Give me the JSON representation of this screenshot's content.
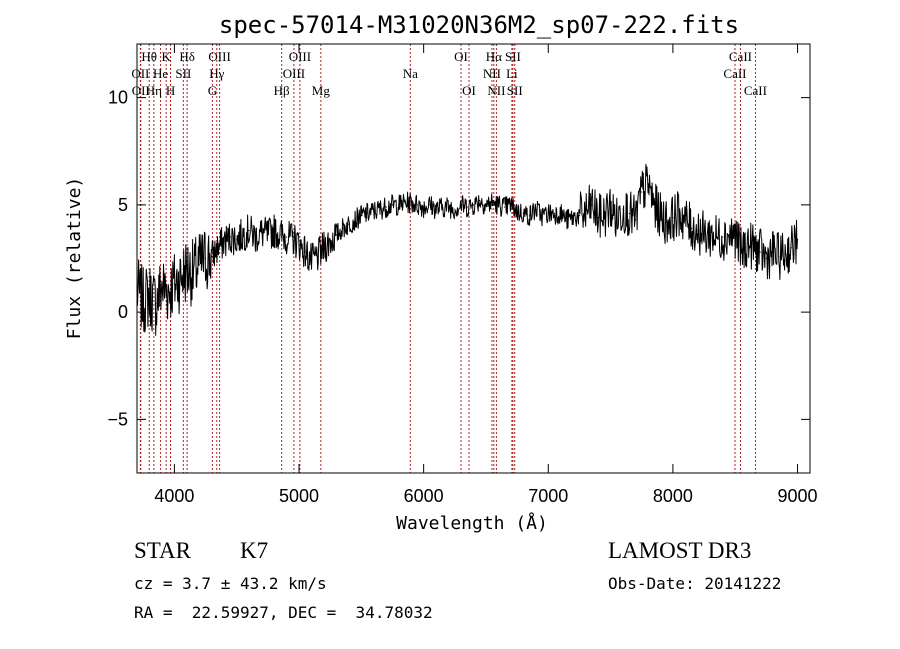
{
  "colors": {
    "line_marker": "#b22222",
    "spectrum": "#000000",
    "axes": "#000000"
  },
  "info": {
    "object_class": "STAR",
    "subclass": "K7",
    "survey": "LAMOST DR3",
    "cz": "cz = 3.7 ± 43.2 km/s",
    "obs_date": "Obs-Date: 20141222",
    "coords": "RA =  22.59927, DEC =  34.78032"
  },
  "chart_data": {
    "type": "line",
    "title": "spec-57014-M31020N36M2_sp07-222.fits",
    "xlabel": "Wavelength (Å)",
    "ylabel": "Flux (relative)",
    "xlim": [
      3700,
      9100
    ],
    "ylim": [
      -7.5,
      12.5
    ],
    "xticks": [
      4000,
      5000,
      6000,
      7000,
      8000,
      9000
    ],
    "yticks": [
      -5,
      0,
      5,
      10
    ],
    "grid": false,
    "series": [
      {
        "x": [
          3700,
          3750,
          3800,
          3850,
          3900,
          3950,
          4000,
          4050,
          4100,
          4150,
          4200,
          4250,
          4300,
          4350,
          4400,
          4450,
          4500,
          4550,
          4600,
          4650,
          4700,
          4750,
          4800,
          4850,
          4900,
          4950,
          5000,
          5050,
          5100,
          5150,
          5200,
          5250,
          5300,
          5350,
          5400,
          5450,
          5500,
          5550,
          5600,
          5650,
          5700,
          5750,
          5800,
          5850,
          5900,
          5950,
          6000,
          6050,
          6100,
          6150,
          6200,
          6250,
          6300,
          6350,
          6400,
          6450,
          6500,
          6550,
          6600,
          6650,
          6700,
          6750,
          6800,
          6850,
          6900,
          6950,
          7000,
          7050,
          7100,
          7150,
          7200,
          7250,
          7300,
          7350,
          7400,
          7450,
          7500,
          7550,
          7600,
          7650,
          7700,
          7750,
          7800,
          7850,
          7900,
          7950,
          8000,
          8050,
          8100,
          8150,
          8200,
          8250,
          8300,
          8350,
          8400,
          8450,
          8500,
          8550,
          8600,
          8650,
          8700,
          8750,
          8800,
          8850,
          8900,
          8950,
          9000
        ],
        "y": [
          1.0,
          0.5,
          0.8,
          0.4,
          1.2,
          1.0,
          1.3,
          1.6,
          2.0,
          1.8,
          2.2,
          2.5,
          2.6,
          3.0,
          3.3,
          3.5,
          3.4,
          3.6,
          3.8,
          3.5,
          3.7,
          3.6,
          3.8,
          3.6,
          3.5,
          3.4,
          3.2,
          2.8,
          2.4,
          2.6,
          3.0,
          3.3,
          3.6,
          3.9,
          4.1,
          4.3,
          4.5,
          4.6,
          4.7,
          4.8,
          4.9,
          5.0,
          5.0,
          5.1,
          5.1,
          5.0,
          4.9,
          5.0,
          4.8,
          4.9,
          4.9,
          4.8,
          5.0,
          4.9,
          5.0,
          5.2,
          5.0,
          5.1,
          5.0,
          4.9,
          5.0,
          4.7,
          4.6,
          4.5,
          4.8,
          4.5,
          4.6,
          4.6,
          4.6,
          4.3,
          4.4,
          4.5,
          4.6,
          5.0,
          4.4,
          4.5,
          4.9,
          4.3,
          4.8,
          4.6,
          4.3,
          5.6,
          6.0,
          5.0,
          4.5,
          4.2,
          4.4,
          4.6,
          4.3,
          3.9,
          3.8,
          3.6,
          3.6,
          3.5,
          3.5,
          3.6,
          3.6,
          2.8,
          3.2,
          3.0,
          2.8,
          2.5,
          2.8,
          2.6,
          2.7,
          3.0,
          3.4
        ]
      }
    ],
    "spectral_lines": [
      {
        "name": "Hθ",
        "wavelength": 3798,
        "row": 1
      },
      {
        "name": "OII",
        "wavelength": 3727,
        "row": 2
      },
      {
        "name": "OII",
        "wavelength": 3730,
        "row": 3
      },
      {
        "name": "K",
        "wavelength": 3934,
        "row": 1
      },
      {
        "name": "He",
        "wavelength": 3889,
        "row": 2
      },
      {
        "name": "Hη",
        "wavelength": 3835,
        "row": 3
      },
      {
        "name": "Hδ",
        "wavelength": 4102,
        "row": 1
      },
      {
        "name": "SII",
        "wavelength": 4072,
        "row": 2
      },
      {
        "name": "H",
        "wavelength": 3969,
        "row": 3
      },
      {
        "name": "OIII",
        "wavelength": 4363,
        "row": 1
      },
      {
        "name": "Hγ",
        "wavelength": 4340,
        "row": 2
      },
      {
        "name": "G",
        "wavelength": 4305,
        "row": 3
      },
      {
        "name": "OIII",
        "wavelength": 5007,
        "row": 1
      },
      {
        "name": "OIII",
        "wavelength": 4959,
        "row": 2
      },
      {
        "name": "Hβ",
        "wavelength": 4861,
        "row": 3
      },
      {
        "name": "Mg",
        "wavelength": 5175,
        "row": 3
      },
      {
        "name": "Na",
        "wavelength": 5893,
        "row": 2
      },
      {
        "name": "OI",
        "wavelength": 6300,
        "row": 1
      },
      {
        "name": "OI",
        "wavelength": 6364,
        "row": 3
      },
      {
        "name": "Hα",
        "wavelength": 6563,
        "row": 1
      },
      {
        "name": "SII",
        "wavelength": 6716,
        "row": 1
      },
      {
        "name": "NII",
        "wavelength": 6548,
        "row": 2
      },
      {
        "name": "Li",
        "wavelength": 6708,
        "row": 2
      },
      {
        "name": "NII",
        "wavelength": 6584,
        "row": 3
      },
      {
        "name": "SII",
        "wavelength": 6731,
        "row": 3
      },
      {
        "name": "CaII",
        "wavelength": 8542,
        "row": 1
      },
      {
        "name": "CaII",
        "wavelength": 8498,
        "row": 2
      },
      {
        "name": "CaII",
        "wavelength": 8662,
        "row": 3
      }
    ]
  }
}
